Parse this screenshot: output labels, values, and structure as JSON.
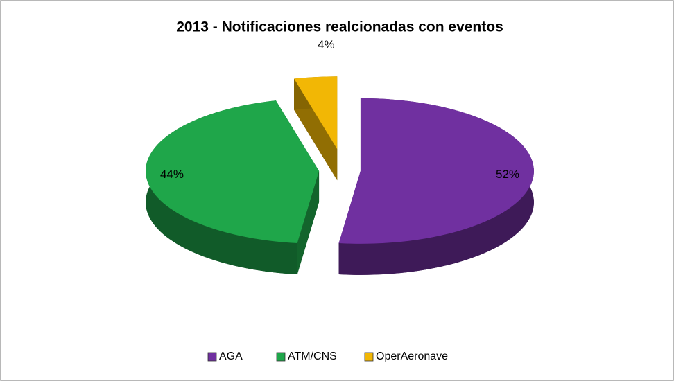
{
  "chart_data": {
    "type": "pie3d",
    "title": "2013 - Notificaciones realcionadas con eventos",
    "categories": [
      "AGA",
      "ATM/CNS",
      "OperAeronave"
    ],
    "values": [
      52,
      44,
      4
    ],
    "value_labels": [
      "52%",
      "44%",
      "4%"
    ],
    "colors": [
      "#7030a0",
      "#1fa64a",
      "#f2b705"
    ],
    "legend": "bottom"
  }
}
